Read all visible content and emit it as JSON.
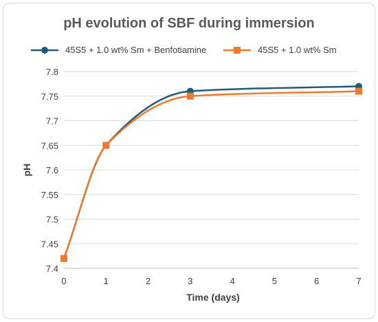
{
  "chart_data": {
    "type": "line",
    "title": "pH evolution of SBF during immersion",
    "xlabel": "Time (days)",
    "ylabel": "pH",
    "xlim": [
      0,
      7
    ],
    "ylim": [
      7.4,
      7.8
    ],
    "x_ticks": [
      "0",
      "1",
      "2",
      "3",
      "4",
      "5",
      "6",
      "7"
    ],
    "y_ticks": [
      "7.4",
      "7.45",
      "7.5",
      "7.55",
      "7.6",
      "7.65",
      "7.7",
      "7.75",
      "7.8"
    ],
    "grid": "horizontal",
    "legend_position": "top",
    "series": [
      {
        "name": "45S5 + 1.0 wt% Sm + Benfotiamine",
        "color": "#1f5c7a",
        "marker": "circle",
        "x": [
          0,
          1,
          3,
          7
        ],
        "y": [
          7.42,
          7.65,
          7.76,
          7.77
        ]
      },
      {
        "name": "45S5 + 1.0 wt% Sm",
        "color": "#ef7a2c",
        "marker": "square",
        "x": [
          0,
          1,
          3,
          7
        ],
        "y": [
          7.42,
          7.65,
          7.75,
          7.76
        ]
      }
    ]
  }
}
